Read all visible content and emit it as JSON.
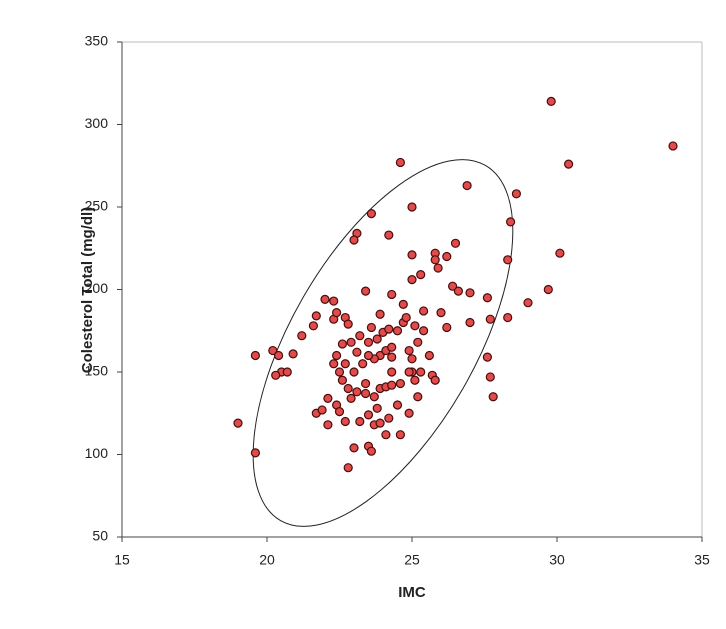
{
  "chart_data": {
    "type": "scatter",
    "x_label": "IMC",
    "y_label": "Colesterol Total (mg/dl)",
    "color": "#e04b4b",
    "xlim": [
      15,
      35
    ],
    "xticks": [
      15,
      20,
      25,
      30,
      35
    ],
    "ylim": [
      50,
      350
    ],
    "yticks": [
      50,
      100,
      150,
      200,
      250,
      300,
      350
    ],
    "x": [
      29.8,
      30.4,
      34.0,
      24.6,
      26.9,
      28.6,
      25.0,
      28.4,
      23.6,
      23.1,
      24.2,
      23.0,
      26.5,
      25.8,
      25.8,
      26.2,
      25.0,
      28.3,
      30.1,
      25.9,
      25.3,
      25.0,
      26.4,
      26.6,
      27.0,
      27.6,
      29.7,
      29.0,
      23.4,
      22.3,
      24.3,
      24.7,
      25.4,
      26.0,
      27.7,
      28.3,
      26.2,
      27.0,
      21.7,
      21.6,
      22.7,
      22.3,
      22.8,
      21.2,
      20.9,
      20.2,
      20.4,
      19.6,
      20.5,
      20.7,
      20.3,
      19.0,
      19.6,
      21.7,
      22.1,
      22.4,
      22.1,
      22.7,
      23.0,
      22.8,
      23.5,
      23.6,
      24.1,
      24.6,
      23.7,
      23.9,
      24.2,
      24.5,
      24.9,
      25.2,
      25.3,
      25.1,
      25.0,
      25.0,
      24.9,
      25.2,
      25.4,
      24.5,
      24.0,
      23.8,
      23.5,
      23.2,
      22.9,
      22.6,
      22.4,
      22.3,
      22.5,
      22.6,
      22.8,
      23.1,
      23.4,
      23.7,
      23.9,
      24.1,
      24.3,
      24.6,
      23.9,
      24.1,
      24.3,
      23.7,
      23.5,
      23.3,
      23.0,
      22.7,
      23.1,
      23.6,
      24.2,
      24.7,
      25.1,
      25.6,
      25.7,
      25.8,
      27.6,
      27.7,
      27.8,
      24.3,
      23.8,
      23.5,
      23.2,
      22.5,
      21.9,
      22.0,
      22.4,
      23.9,
      24.8,
      24.9,
      23.4,
      22.9,
      24.3
    ],
    "values": [
      314,
      276,
      287,
      277,
      263,
      258,
      250,
      241,
      246,
      234,
      233,
      230,
      228,
      222,
      218,
      220,
      221,
      218,
      222,
      213,
      209,
      206,
      202,
      199,
      198,
      195,
      200,
      192,
      199,
      193,
      197,
      191,
      187,
      186,
      182,
      183,
      177,
      180,
      184,
      178,
      183,
      182,
      179,
      172,
      161,
      163,
      160,
      160,
      150,
      150,
      148,
      119,
      101,
      125,
      134,
      130,
      118,
      120,
      104,
      92,
      105,
      102,
      112,
      112,
      118,
      119,
      122,
      130,
      125,
      135,
      150,
      145,
      150,
      158,
      163,
      168,
      175,
      175,
      174,
      170,
      168,
      172,
      168,
      167,
      160,
      155,
      150,
      145,
      140,
      138,
      137,
      135,
      140,
      141,
      142,
      143,
      160,
      163,
      165,
      158,
      160,
      155,
      150,
      155,
      162,
      177,
      176,
      180,
      178,
      160,
      148,
      145,
      159,
      147,
      135,
      150,
      128,
      124,
      120,
      126,
      127,
      194,
      186,
      185,
      183,
      150,
      143,
      134,
      159
    ]
  }
}
